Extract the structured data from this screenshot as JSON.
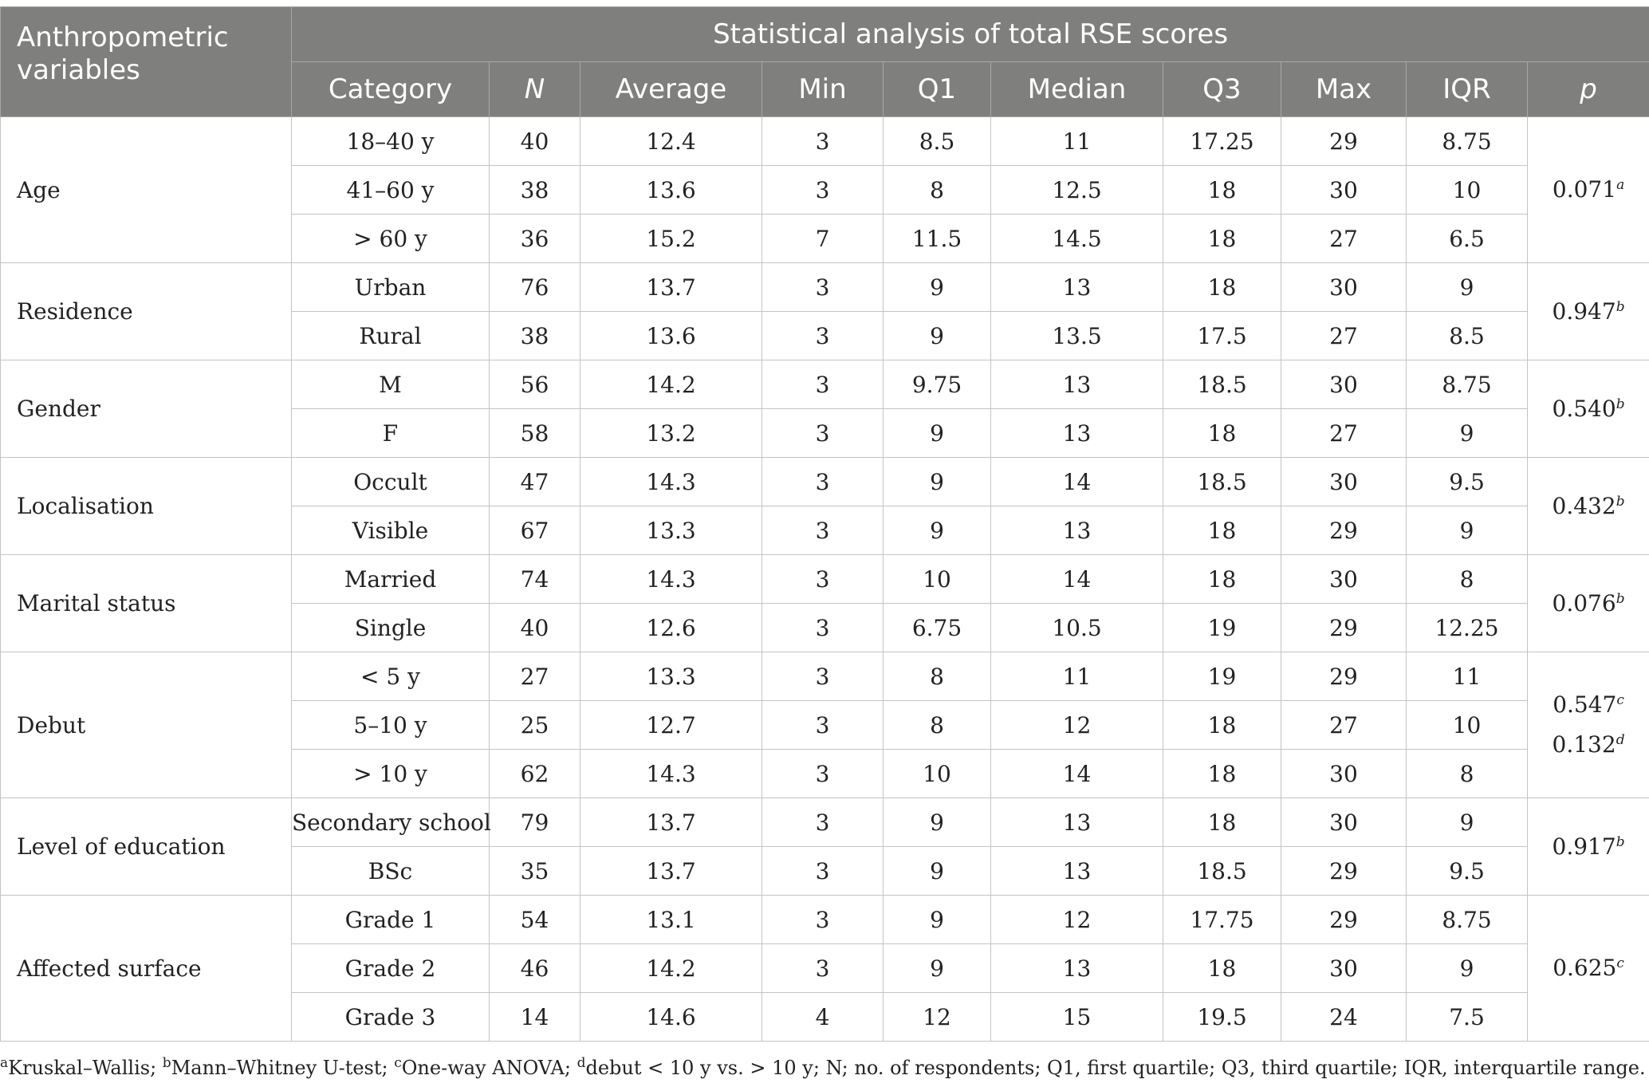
{
  "table": {
    "header_variables": "Anthropometric variables",
    "header_group": "Statistical analysis of total RSE scores",
    "columns": [
      "Category",
      "N",
      "Average",
      "Min",
      "Q1",
      "Median",
      "Q3",
      "Max",
      "IQR",
      "p"
    ],
    "groups": [
      {
        "variable": "Age",
        "rows": [
          [
            "18–40 y",
            "40",
            "12.4",
            "3",
            "8.5",
            "11",
            "17.25",
            "29",
            "8.75"
          ],
          [
            "41–60 y",
            "38",
            "13.6",
            "3",
            "8",
            "12.5",
            "18",
            "30",
            "10"
          ],
          [
            "> 60 y",
            "36",
            "15.2",
            "7",
            "11.5",
            "14.5",
            "18",
            "27",
            "6.5"
          ]
        ],
        "p": [
          {
            "value": "0.071",
            "sup": "a"
          }
        ]
      },
      {
        "variable": "Residence",
        "rows": [
          [
            "Urban",
            "76",
            "13.7",
            "3",
            "9",
            "13",
            "18",
            "30",
            "9"
          ],
          [
            "Rural",
            "38",
            "13.6",
            "3",
            "9",
            "13.5",
            "17.5",
            "27",
            "8.5"
          ]
        ],
        "p": [
          {
            "value": "0.947",
            "sup": "b"
          }
        ]
      },
      {
        "variable": "Gender",
        "rows": [
          [
            "M",
            "56",
            "14.2",
            "3",
            "9.75",
            "13",
            "18.5",
            "30",
            "8.75"
          ],
          [
            "F",
            "58",
            "13.2",
            "3",
            "9",
            "13",
            "18",
            "27",
            "9"
          ]
        ],
        "p": [
          {
            "value": "0.540",
            "sup": "b"
          }
        ]
      },
      {
        "variable": "Localisation",
        "rows": [
          [
            "Occult",
            "47",
            "14.3",
            "3",
            "9",
            "14",
            "18.5",
            "30",
            "9.5"
          ],
          [
            "Visible",
            "67",
            "13.3",
            "3",
            "9",
            "13",
            "18",
            "29",
            "9"
          ]
        ],
        "p": [
          {
            "value": "0.432",
            "sup": "b"
          }
        ]
      },
      {
        "variable": "Marital status",
        "rows": [
          [
            "Married",
            "74",
            "14.3",
            "3",
            "10",
            "14",
            "18",
            "30",
            "8"
          ],
          [
            "Single",
            "40",
            "12.6",
            "3",
            "6.75",
            "10.5",
            "19",
            "29",
            "12.25"
          ]
        ],
        "p": [
          {
            "value": "0.076",
            "sup": "b"
          }
        ]
      },
      {
        "variable": "Debut",
        "rows": [
          [
            "< 5 y",
            "27",
            "13.3",
            "3",
            "8",
            "11",
            "19",
            "29",
            "11"
          ],
          [
            "5–10 y",
            "25",
            "12.7",
            "3",
            "8",
            "12",
            "18",
            "27",
            "10"
          ],
          [
            "> 10 y",
            "62",
            "14.3",
            "3",
            "10",
            "14",
            "18",
            "30",
            "8"
          ]
        ],
        "p": [
          {
            "value": "0.547",
            "sup": "c"
          },
          {
            "value": "0.132",
            "sup": "d"
          }
        ]
      },
      {
        "variable": "Level of education",
        "rows": [
          [
            "Secondary school",
            "79",
            "13.7",
            "3",
            "9",
            "13",
            "18",
            "30",
            "9"
          ],
          [
            "BSc",
            "35",
            "13.7",
            "3",
            "9",
            "13",
            "18.5",
            "29",
            "9.5"
          ]
        ],
        "p": [
          {
            "value": "0.917",
            "sup": "b"
          }
        ]
      },
      {
        "variable": "Affected surface",
        "rows": [
          [
            "Grade 1",
            "54",
            "13.1",
            "3",
            "9",
            "12",
            "17.75",
            "29",
            "8.75"
          ],
          [
            "Grade 2",
            "46",
            "14.2",
            "3",
            "9",
            "13",
            "18",
            "30",
            "9"
          ],
          [
            "Grade 3",
            "14",
            "14.6",
            "4",
            "12",
            "15",
            "19.5",
            "24",
            "7.5"
          ]
        ],
        "p": [
          {
            "value": "0.625",
            "sup": "c"
          }
        ]
      }
    ]
  },
  "footnote": {
    "a_mark": "a",
    "a_text": "Kruskal–Wallis; ",
    "b_mark": "b",
    "b_text": "Mann–Whitney U-test; ",
    "c_mark": "c",
    "c_text": "One-way ANOVA; ",
    "d_mark": "d",
    "d_text": "debut < 10 y vs. > 10 y; N; no. of respondents; Q1, first quartile; Q3, third quartile; IQR, interquartile range."
  }
}
